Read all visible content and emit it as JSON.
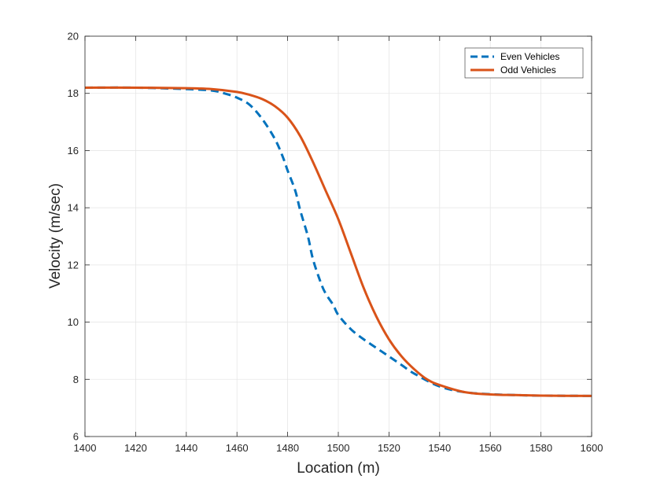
{
  "chart_data": {
    "type": "line",
    "title": "",
    "xlabel": "Location (m)",
    "ylabel": "Velocity (m/sec)",
    "xlim": [
      1400,
      1600
    ],
    "ylim": [
      6,
      20
    ],
    "x_ticks": [
      1400,
      1420,
      1440,
      1460,
      1480,
      1500,
      1520,
      1540,
      1560,
      1580,
      1600
    ],
    "y_ticks": [
      6,
      8,
      10,
      12,
      14,
      16,
      18,
      20
    ],
    "grid": true,
    "legend_position": "top-right",
    "series": [
      {
        "name": "Even Vehicles",
        "color": "#0072BD",
        "style": "dashed",
        "x": [
          1400,
          1420,
          1440,
          1450,
          1455,
          1460,
          1465,
          1470,
          1475,
          1478,
          1480,
          1483,
          1485,
          1488,
          1490,
          1493,
          1495,
          1498,
          1500,
          1505,
          1510,
          1515,
          1520,
          1525,
          1530,
          1540,
          1550,
          1560,
          1570,
          1580,
          1600
        ],
        "y": [
          18.2,
          18.2,
          18.15,
          18.1,
          18.0,
          17.85,
          17.6,
          17.1,
          16.4,
          15.8,
          15.3,
          14.6,
          13.9,
          13.0,
          12.2,
          11.4,
          11.0,
          10.6,
          10.25,
          9.75,
          9.4,
          9.1,
          8.8,
          8.5,
          8.2,
          7.75,
          7.55,
          7.48,
          7.45,
          7.43,
          7.42
        ]
      },
      {
        "name": "Odd Vehicles",
        "color": "#D95319",
        "style": "solid",
        "x": [
          1400,
          1420,
          1440,
          1450,
          1460,
          1465,
          1470,
          1475,
          1480,
          1485,
          1490,
          1495,
          1500,
          1505,
          1510,
          1515,
          1520,
          1525,
          1530,
          1535,
          1540,
          1550,
          1560,
          1570,
          1580,
          1600
        ],
        "y": [
          18.2,
          18.2,
          18.18,
          18.15,
          18.05,
          17.95,
          17.8,
          17.55,
          17.15,
          16.5,
          15.6,
          14.6,
          13.6,
          12.4,
          11.2,
          10.2,
          9.4,
          8.8,
          8.35,
          8.0,
          7.8,
          7.55,
          7.47,
          7.45,
          7.43,
          7.42
        ]
      }
    ]
  }
}
